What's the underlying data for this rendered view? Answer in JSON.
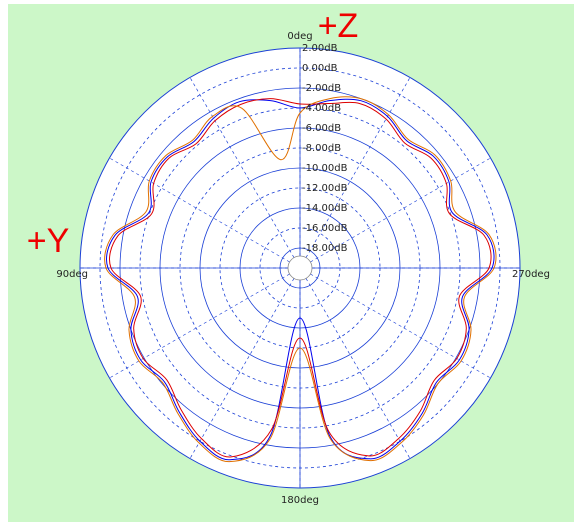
{
  "chart_data": {
    "type": "polar",
    "background": "#ccf7c8",
    "grid_color": "#1a3fd6",
    "rlim": [
      -20,
      2
    ],
    "rticks": [
      {
        "value": 2,
        "label": "2.00dB"
      },
      {
        "value": 0,
        "label": "0.00dB"
      },
      {
        "value": -2,
        "label": "-2.00dB"
      },
      {
        "value": -4,
        "label": "-4.00dB"
      },
      {
        "value": -6,
        "label": "-6.00dB"
      },
      {
        "value": -8,
        "label": "-8.00dB"
      },
      {
        "value": -10,
        "label": "-10.00dB"
      },
      {
        "value": -12,
        "label": "-12.00dB"
      },
      {
        "value": -14,
        "label": "-14.00dB"
      },
      {
        "value": -16,
        "label": "-16.00dB"
      },
      {
        "value": -18,
        "label": "-18.00dB"
      }
    ],
    "angle_labels": [
      {
        "value": 0,
        "label": "0deg"
      },
      {
        "value": 90,
        "label": "90deg"
      },
      {
        "value": 180,
        "label": "180deg"
      },
      {
        "value": 270,
        "label": "270deg"
      }
    ],
    "annotations": [
      "+Z",
      "+Y"
    ],
    "theta": [
      0,
      10,
      20,
      30,
      40,
      50,
      60,
      70,
      80,
      90,
      100,
      110,
      120,
      130,
      140,
      150,
      160,
      170,
      180,
      190,
      200,
      210,
      220,
      230,
      240,
      250,
      260,
      270,
      280,
      290,
      300,
      310,
      320,
      330,
      340,
      350
    ],
    "series": [
      {
        "color": "#0000ee",
        "values": [
          -4,
          -3,
          -2.3,
          -2.7,
          -3.5,
          -2.7,
          -2.8,
          -3.9,
          -1.2,
          -0.8,
          -3.5,
          -2,
          -1.6,
          -2.3,
          -1.2,
          0,
          0.4,
          -3,
          -15,
          -3,
          0.3,
          0,
          -1,
          -2.2,
          -1.6,
          -2,
          -3.5,
          -0.8,
          -1,
          -3.8,
          -2.8,
          -2.6,
          -3.4,
          -2.5,
          -2.2,
          -3
        ]
      },
      {
        "color": "#dd0000",
        "values": [
          -3.6,
          -2.8,
          -2.6,
          -3,
          -3.8,
          -2.9,
          -3.1,
          -4.2,
          -1.5,
          -1.1,
          -3.8,
          -2.3,
          -1.9,
          -2.6,
          -1.5,
          -0.3,
          0.1,
          -3.6,
          -13,
          -3.4,
          0,
          -0.3,
          -1.3,
          -2.5,
          -1.9,
          -2.3,
          -3.8,
          -1.1,
          -1.3,
          -4.1,
          -3.1,
          -2.9,
          -3.7,
          -2.8,
          -2.5,
          -3.3
        ]
      },
      {
        "color": "#e07000",
        "values": [
          -4.5,
          -9,
          -3,
          -2.5,
          -3.3,
          -2.5,
          -2.6,
          -3.6,
          -1,
          -0.6,
          -3.2,
          -1.8,
          -1.4,
          -2.1,
          -1,
          0.2,
          0.6,
          -2.6,
          -12,
          -2.7,
          0.5,
          0.2,
          -0.8,
          -2,
          -1.4,
          -1.8,
          -3.3,
          -0.6,
          -0.8,
          -3.5,
          -2.6,
          -2.4,
          -3.2,
          -2.3,
          -2,
          -2.8
        ]
      }
    ]
  }
}
